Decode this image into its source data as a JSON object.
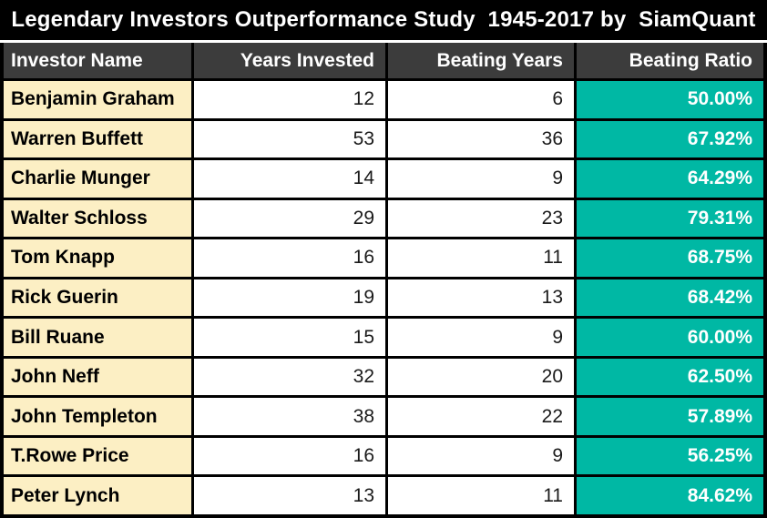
{
  "title": "Legendary Investors Outperformance Study  1945-2017 by  SiamQuant",
  "colors": {
    "title-bg": "#000000",
    "title-text": "#ffffff",
    "header-bg": "#3c3c3c",
    "header-text": "#ffffff",
    "name-bg": "#fcefc4",
    "ratio-bg": "#00b8a4",
    "ratio-text": "#ffffff",
    "border": "#000000"
  },
  "table": {
    "columns": [
      "Investor Name",
      "Years Invested",
      "Beating Years",
      "Beating Ratio"
    ],
    "rows": [
      {
        "name": "Benjamin Graham",
        "years_invested": "12",
        "beating_years": "6",
        "beating_ratio": "50.00%"
      },
      {
        "name": "Warren Buffett",
        "years_invested": "53",
        "beating_years": "36",
        "beating_ratio": "67.92%"
      },
      {
        "name": "Charlie Munger",
        "years_invested": "14",
        "beating_years": "9",
        "beating_ratio": "64.29%"
      },
      {
        "name": "Walter Schloss",
        "years_invested": "29",
        "beating_years": "23",
        "beating_ratio": "79.31%"
      },
      {
        "name": "Tom Knapp",
        "years_invested": "16",
        "beating_years": "11",
        "beating_ratio": "68.75%"
      },
      {
        "name": "Rick Guerin",
        "years_invested": "19",
        "beating_years": "13",
        "beating_ratio": "68.42%"
      },
      {
        "name": "Bill Ruane",
        "years_invested": "15",
        "beating_years": "9",
        "beating_ratio": "60.00%"
      },
      {
        "name": "John Neff",
        "years_invested": "32",
        "beating_years": "20",
        "beating_ratio": "62.50%"
      },
      {
        "name": "John Templeton",
        "years_invested": "38",
        "beating_years": "22",
        "beating_ratio": "57.89%"
      },
      {
        "name": "T.Rowe Price",
        "years_invested": "16",
        "beating_years": "9",
        "beating_ratio": "56.25%"
      },
      {
        "name": "Peter Lynch",
        "years_invested": "13",
        "beating_years": "11",
        "beating_ratio": "84.62%"
      }
    ]
  },
  "chart_data": {
    "type": "table",
    "title": "Legendary Investors Outperformance Study  1945-2017 by  SiamQuant",
    "columns": [
      "Investor Name",
      "Years Invested",
      "Beating Years",
      "Beating Ratio"
    ],
    "categories": [
      "Benjamin Graham",
      "Warren Buffett",
      "Charlie Munger",
      "Walter Schloss",
      "Tom Knapp",
      "Rick Guerin",
      "Bill Ruane",
      "John Neff",
      "John Templeton",
      "T.Rowe Price",
      "Peter Lynch"
    ],
    "series": [
      {
        "name": "Years Invested",
        "values": [
          12,
          53,
          14,
          29,
          16,
          19,
          15,
          32,
          38,
          16,
          13
        ]
      },
      {
        "name": "Beating Years",
        "values": [
          6,
          36,
          9,
          23,
          11,
          13,
          9,
          20,
          22,
          9,
          11
        ]
      },
      {
        "name": "Beating Ratio (%)",
        "values": [
          50.0,
          67.92,
          64.29,
          79.31,
          68.75,
          68.42,
          60.0,
          62.5,
          57.89,
          56.25,
          84.62
        ]
      }
    ]
  }
}
